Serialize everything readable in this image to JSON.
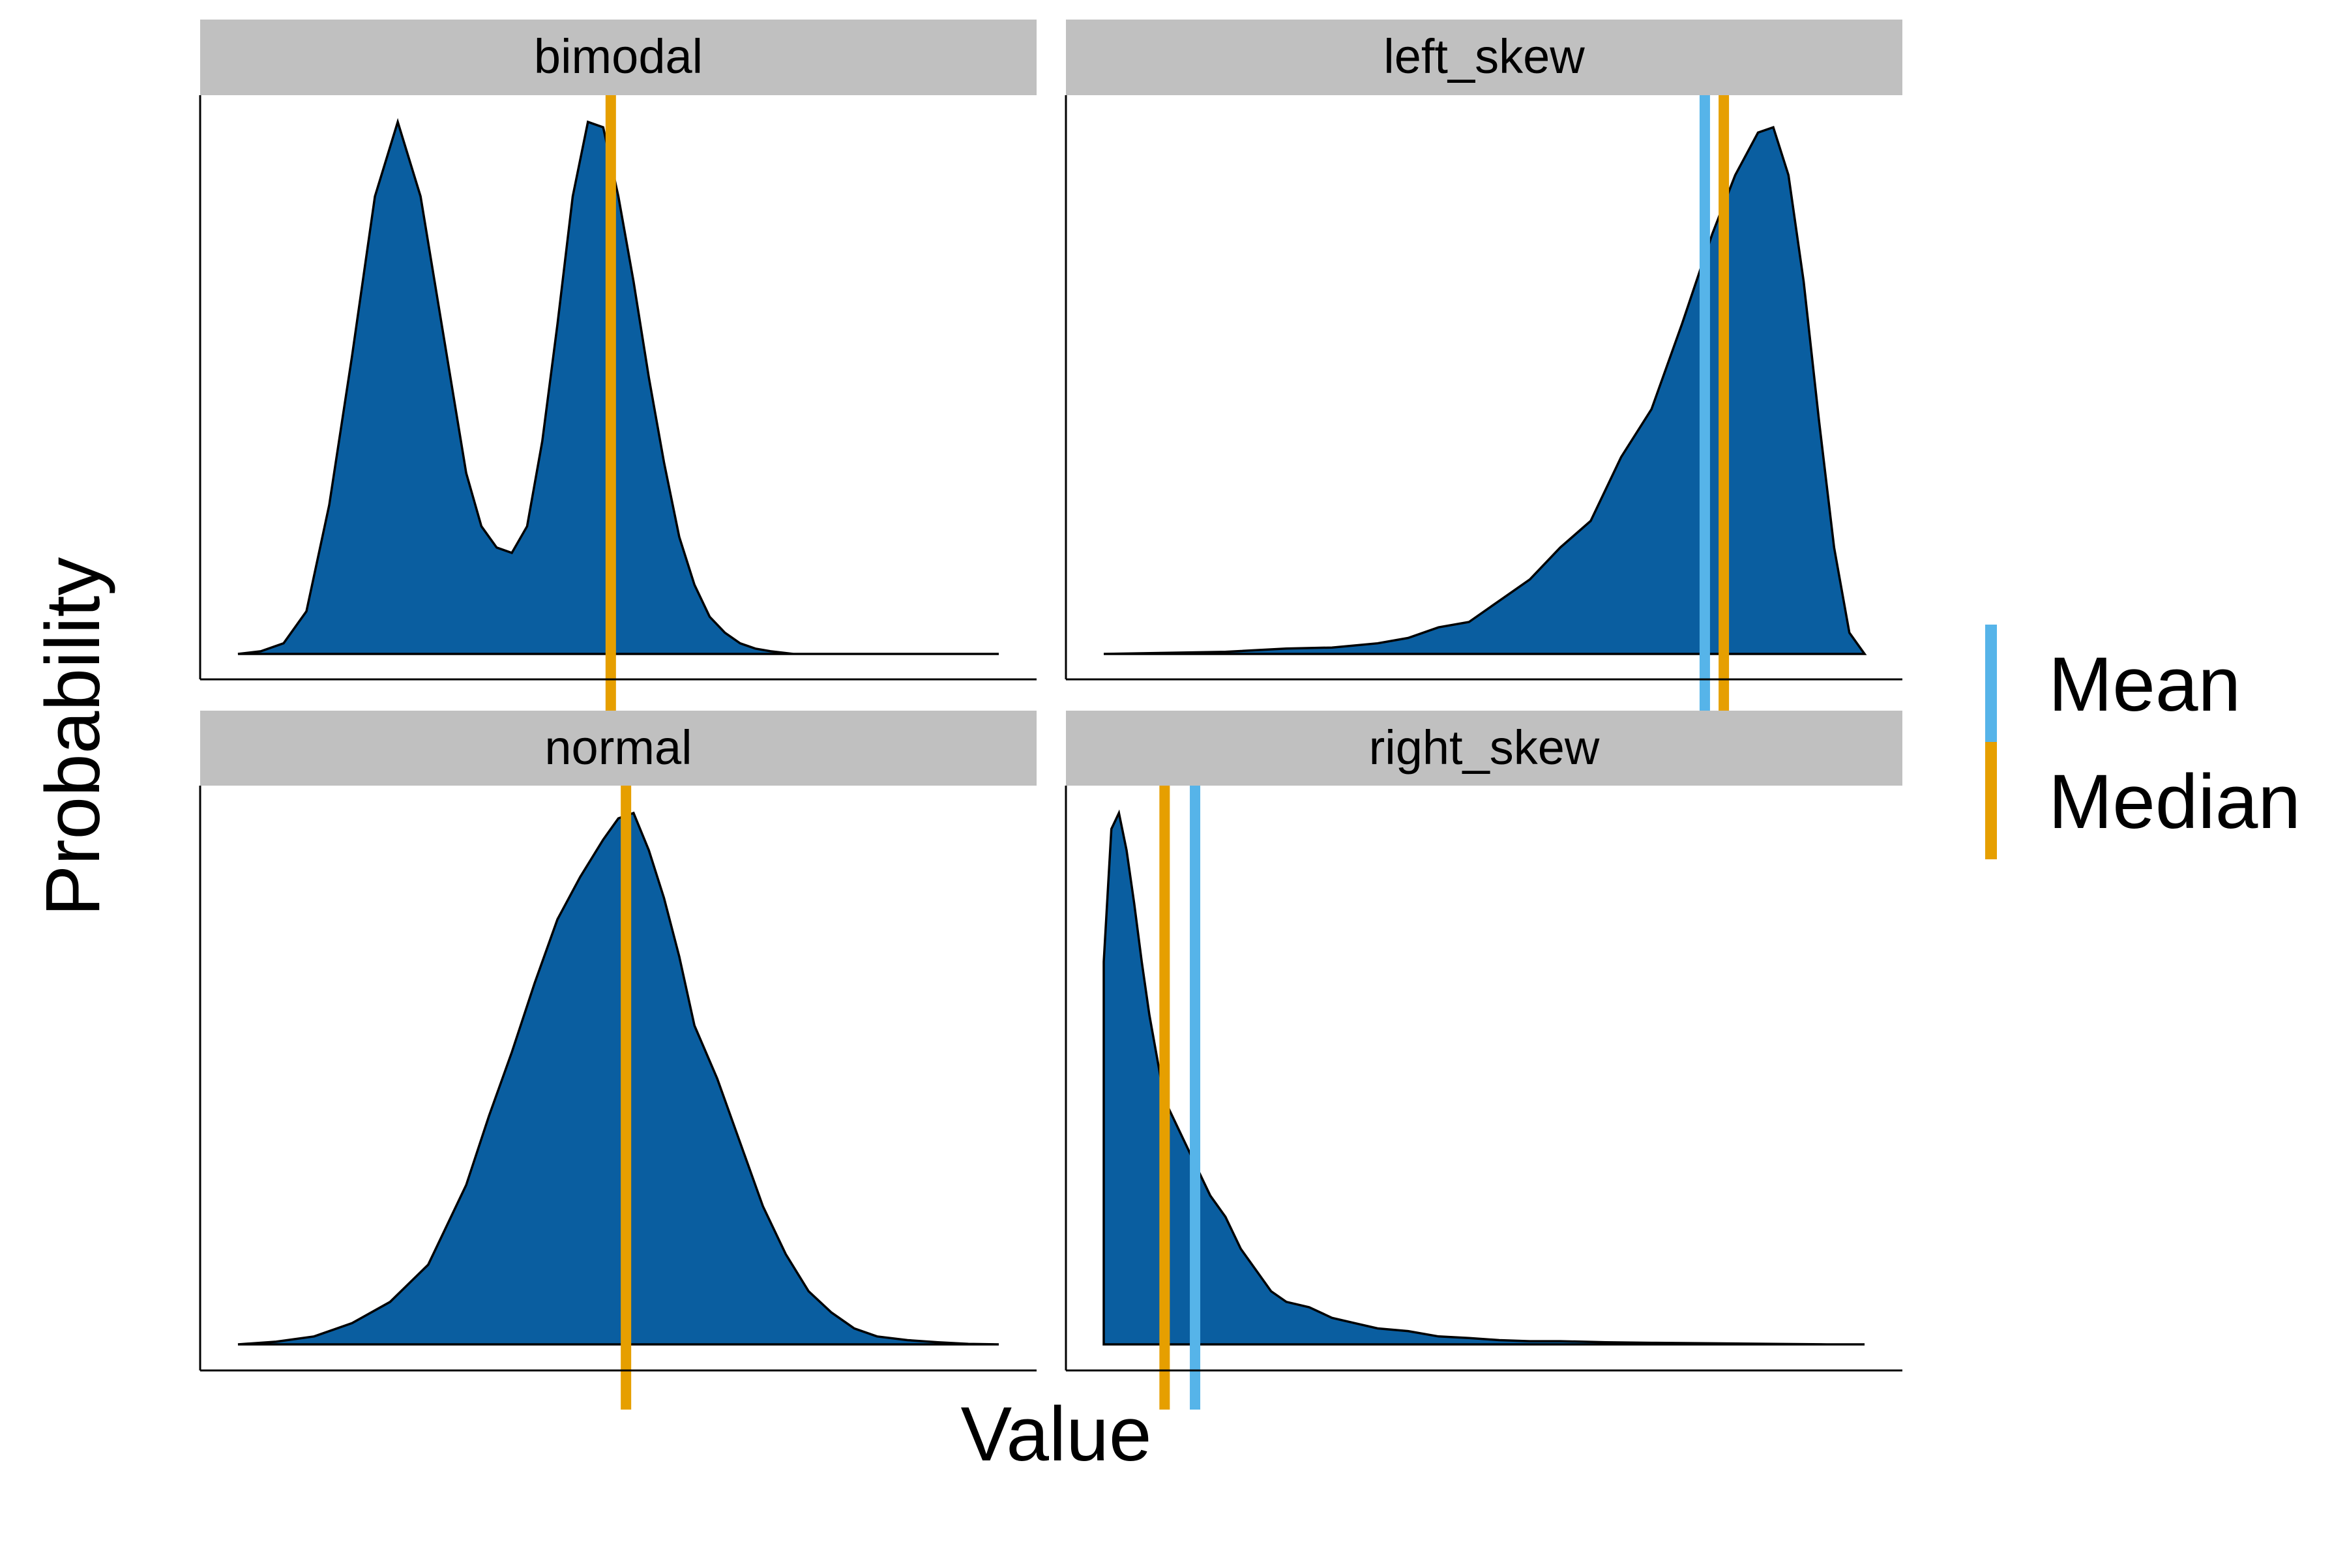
{
  "chart_data": {
    "type": "area",
    "xlabel": "Value",
    "ylabel": "Probability",
    "legend": {
      "placement": "right",
      "entries": [
        {
          "label": "Mean",
          "color": "#56B4E9"
        },
        {
          "label": "Median",
          "color": "#E69F00"
        }
      ]
    },
    "fill_color": "#0A5EA0",
    "strip_color": "#C0C0C0",
    "x_range": [
      0,
      1
    ],
    "y_range": [
      0,
      1
    ],
    "panels": [
      {
        "name": "bimodal",
        "density": {
          "x": [
            0.0,
            0.03,
            0.06,
            0.09,
            0.12,
            0.15,
            0.18,
            0.21,
            0.24,
            0.27,
            0.3,
            0.32,
            0.34,
            0.36,
            0.38,
            0.4,
            0.42,
            0.44,
            0.46,
            0.48,
            0.5,
            0.52,
            0.54,
            0.56,
            0.58,
            0.6,
            0.62,
            0.64,
            0.66,
            0.68,
            0.7,
            0.73,
            0.76,
            0.79,
            0.82,
            0.85,
            0.88,
            0.91,
            0.94,
            0.97,
            1.0
          ],
          "y": [
            0.0,
            0.005,
            0.02,
            0.08,
            0.28,
            0.56,
            0.86,
            1.0,
            0.86,
            0.6,
            0.34,
            0.24,
            0.2,
            0.19,
            0.24,
            0.4,
            0.62,
            0.86,
            1.0,
            0.99,
            0.86,
            0.7,
            0.52,
            0.36,
            0.22,
            0.13,
            0.07,
            0.04,
            0.02,
            0.01,
            0.005,
            0.0,
            0.0,
            0.0,
            0.0,
            0.0,
            0.0,
            0.0,
            0.0,
            0.0,
            0.0
          ]
        },
        "mean": null,
        "median": 0.49
      },
      {
        "name": "left_skew",
        "density": {
          "x": [
            0.0,
            0.08,
            0.16,
            0.24,
            0.3,
            0.36,
            0.4,
            0.44,
            0.48,
            0.52,
            0.56,
            0.6,
            0.64,
            0.68,
            0.72,
            0.76,
            0.8,
            0.83,
            0.86,
            0.88,
            0.9,
            0.92,
            0.94,
            0.96,
            0.98,
            1.0
          ],
          "y": [
            0.0,
            0.002,
            0.004,
            0.01,
            0.012,
            0.02,
            0.03,
            0.05,
            0.06,
            0.1,
            0.14,
            0.2,
            0.25,
            0.37,
            0.46,
            0.62,
            0.79,
            0.9,
            0.98,
            0.99,
            0.9,
            0.7,
            0.44,
            0.2,
            0.04,
            0.0
          ]
        },
        "mean": 0.79,
        "median": 0.815
      },
      {
        "name": "normal",
        "density": {
          "x": [
            0.0,
            0.05,
            0.1,
            0.15,
            0.2,
            0.25,
            0.3,
            0.33,
            0.36,
            0.39,
            0.42,
            0.45,
            0.48,
            0.5,
            0.52,
            0.54,
            0.56,
            0.58,
            0.6,
            0.63,
            0.66,
            0.69,
            0.72,
            0.75,
            0.78,
            0.81,
            0.84,
            0.88,
            0.92,
            0.96,
            1.0
          ],
          "y": [
            0.0,
            0.005,
            0.015,
            0.04,
            0.08,
            0.15,
            0.3,
            0.43,
            0.55,
            0.68,
            0.8,
            0.88,
            0.95,
            0.99,
            1.0,
            0.93,
            0.84,
            0.73,
            0.6,
            0.5,
            0.38,
            0.26,
            0.17,
            0.1,
            0.06,
            0.03,
            0.015,
            0.008,
            0.004,
            0.001,
            0.0
          ]
        },
        "mean": null,
        "median": 0.51
      },
      {
        "name": "right_skew",
        "density": {
          "x": [
            0.0,
            0.01,
            0.02,
            0.03,
            0.04,
            0.05,
            0.06,
            0.07,
            0.08,
            0.1,
            0.12,
            0.14,
            0.16,
            0.18,
            0.2,
            0.22,
            0.24,
            0.27,
            0.3,
            0.33,
            0.36,
            0.4,
            0.44,
            0.48,
            0.52,
            0.56,
            0.6,
            0.66,
            0.72,
            0.8,
            0.88,
            0.95,
            1.0
          ],
          "y": [
            0.72,
            0.97,
            1.0,
            0.93,
            0.83,
            0.72,
            0.62,
            0.54,
            0.46,
            0.4,
            0.34,
            0.28,
            0.24,
            0.18,
            0.14,
            0.1,
            0.08,
            0.07,
            0.05,
            0.04,
            0.03,
            0.025,
            0.015,
            0.012,
            0.008,
            0.006,
            0.006,
            0.004,
            0.003,
            0.002,
            0.001,
            0.0,
            0.0
          ]
        },
        "mean": 0.12,
        "median": 0.08
      }
    ]
  }
}
